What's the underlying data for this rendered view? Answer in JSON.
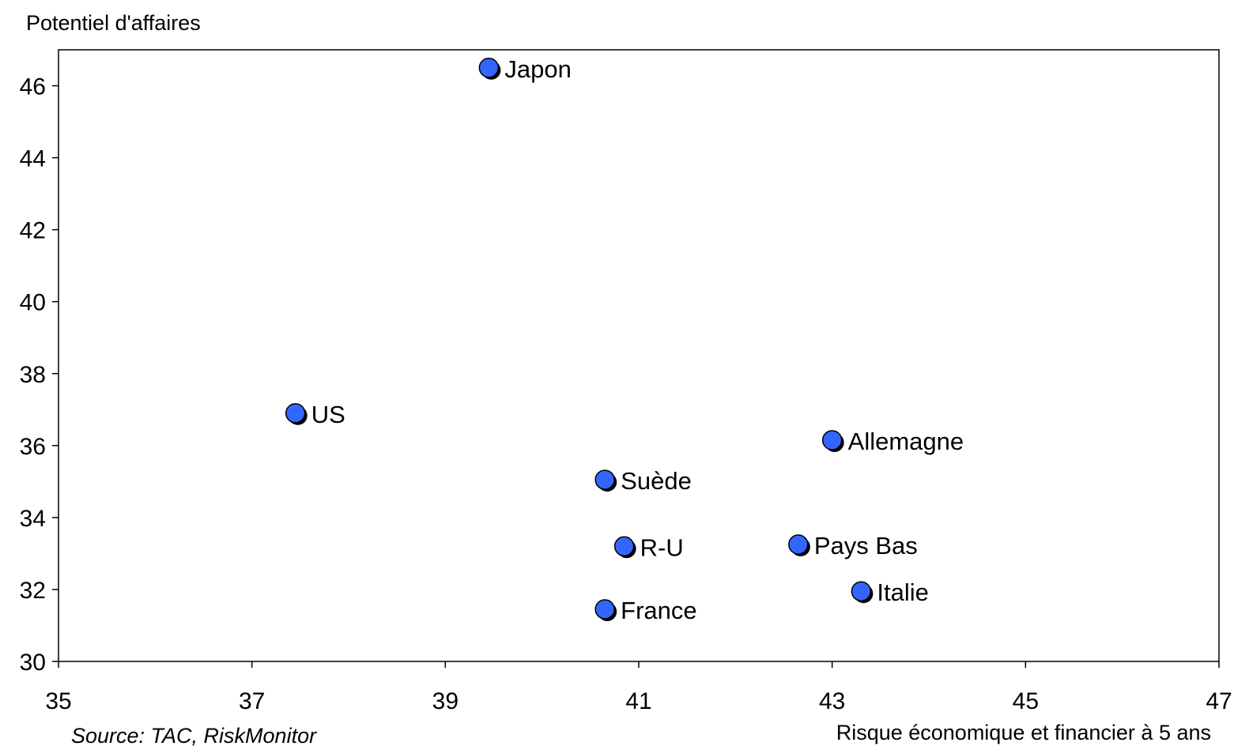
{
  "chart_data": {
    "type": "scatter",
    "ylabel": "Potentiel d'affaires",
    "xlabel": "Risque économique et financier à 5 ans",
    "source": "Source: TAC, RiskMonitor",
    "xlim": [
      35,
      47
    ],
    "ylim": [
      30,
      47
    ],
    "x_ticks": [
      35,
      37,
      39,
      41,
      43,
      45,
      47
    ],
    "y_ticks": [
      30,
      32,
      34,
      36,
      38,
      40,
      42,
      44,
      46
    ],
    "grid": false,
    "marker_color": "#3366ff",
    "points": [
      {
        "label": "Japon",
        "x": 39.45,
        "y": 46.5
      },
      {
        "label": "US",
        "x": 37.45,
        "y": 36.9
      },
      {
        "label": "Allemagne",
        "x": 43.0,
        "y": 36.15
      },
      {
        "label": "Suède",
        "x": 40.65,
        "y": 35.05
      },
      {
        "label": "R-U",
        "x": 40.85,
        "y": 33.2
      },
      {
        "label": "Pays Bas",
        "x": 42.65,
        "y": 33.25
      },
      {
        "label": "Italie",
        "x": 43.3,
        "y": 31.95
      },
      {
        "label": "France",
        "x": 40.65,
        "y": 31.45
      }
    ]
  }
}
